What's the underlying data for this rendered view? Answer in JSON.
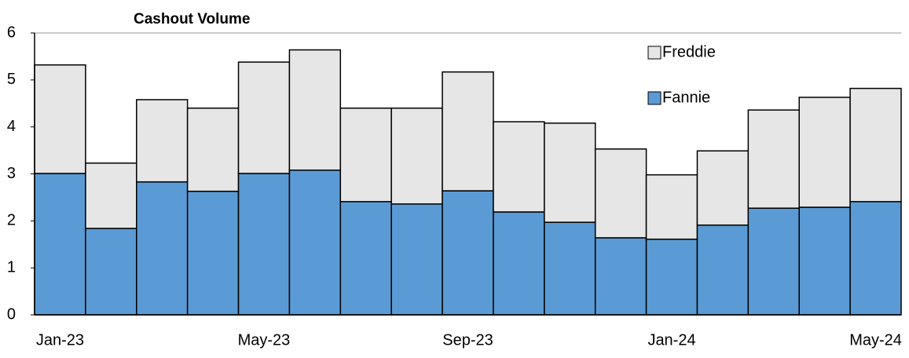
{
  "chart_data": {
    "type": "stacked-bar",
    "title": "Cashout Volume",
    "categories": [
      "Jan-23",
      null,
      null,
      null,
      "May-23",
      null,
      null,
      null,
      "Sep-23",
      null,
      null,
      null,
      "Jan-24",
      null,
      null,
      null,
      "May-24"
    ],
    "series": [
      {
        "name": "Fannie",
        "color": "#5b9bd5",
        "values": [
          3.01,
          1.84,
          2.83,
          2.63,
          3.01,
          3.08,
          2.41,
          2.36,
          2.64,
          2.19,
          1.97,
          1.64,
          1.61,
          1.91,
          2.27,
          2.29,
          2.41
        ]
      },
      {
        "name": "Freddie",
        "color": "#e6e6e6",
        "values": [
          2.31,
          1.39,
          1.75,
          1.77,
          2.37,
          2.56,
          1.99,
          2.04,
          2.53,
          1.92,
          2.11,
          1.89,
          1.37,
          1.58,
          2.09,
          2.34,
          2.41
        ]
      }
    ],
    "ylim": [
      0,
      6
    ],
    "yticks": [
      0,
      1,
      2,
      3,
      4,
      5,
      6
    ],
    "legend": "top-right"
  }
}
